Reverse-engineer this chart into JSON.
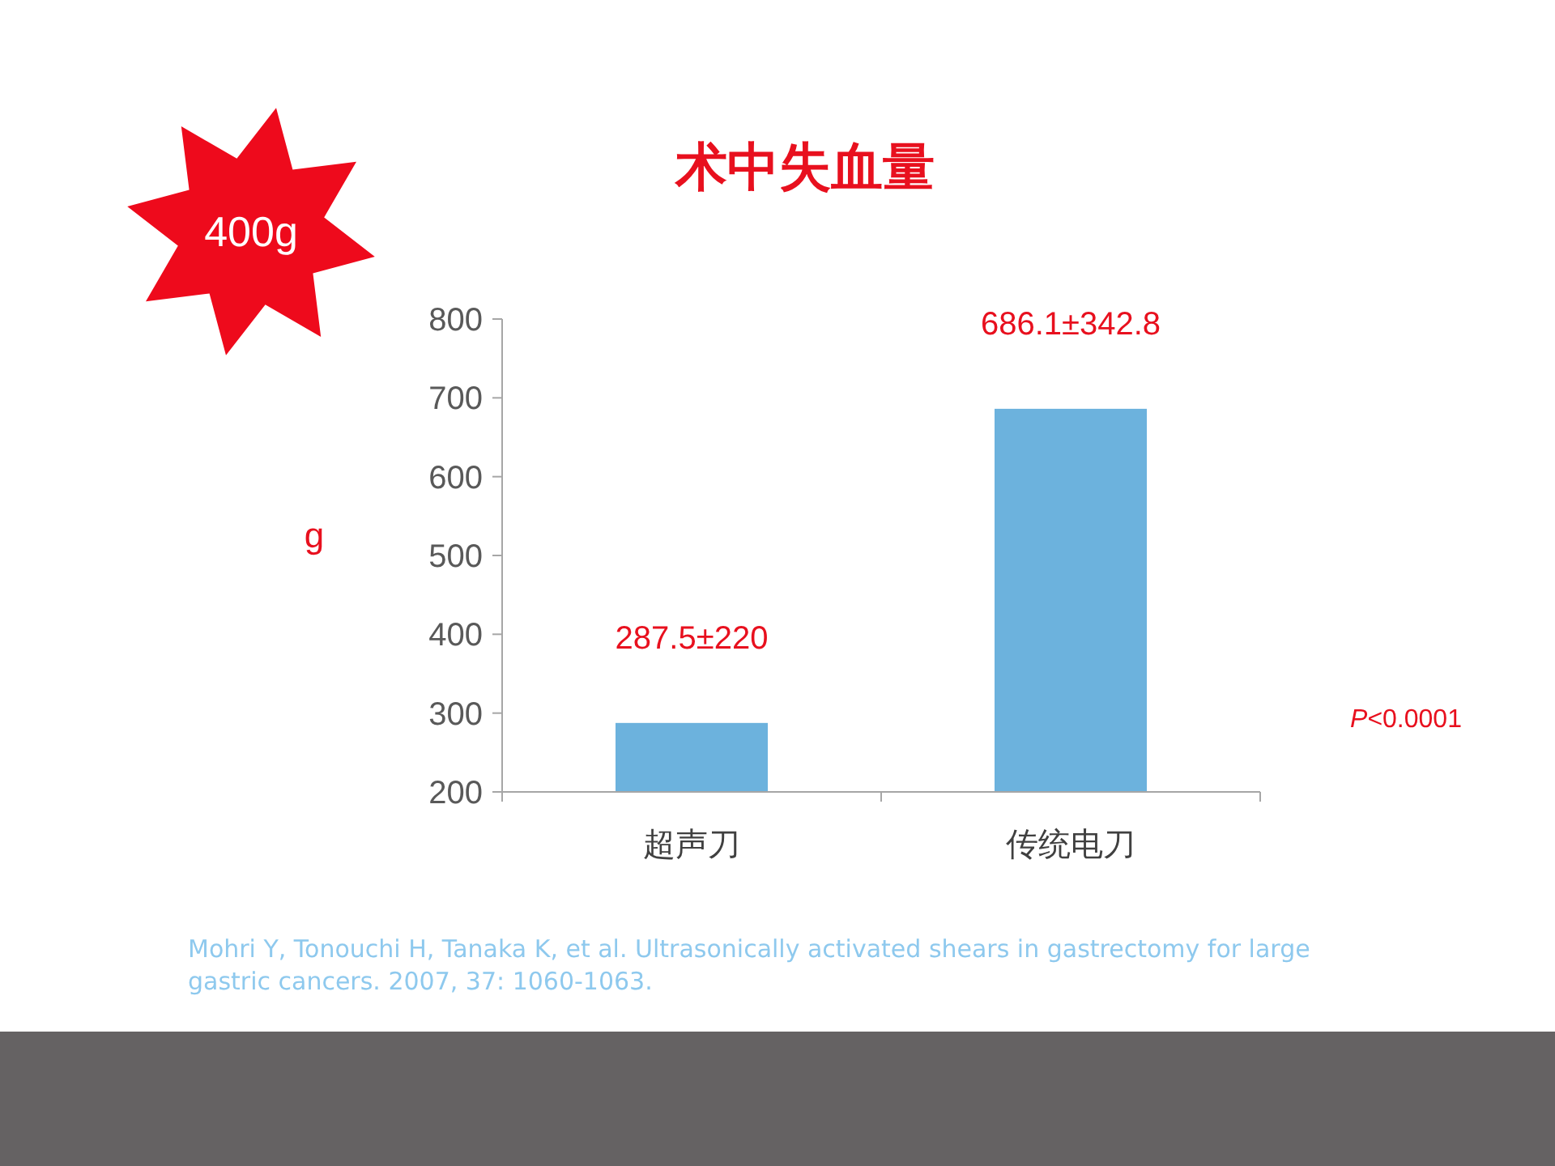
{
  "chart_data": {
    "type": "bar",
    "title": "术中失血量",
    "ylabel": "g",
    "categories": [
      "超声刀",
      "传统电刀"
    ],
    "values": [
      287.5,
      686.1
    ],
    "value_labels": [
      "287.5±220",
      "686.1±342.8"
    ],
    "color": "#6cb2dd",
    "ylim": [
      200,
      800
    ],
    "yticks": [
      200,
      300,
      400,
      500,
      600,
      700,
      800
    ],
    "grid": false,
    "annotations": [
      "400g",
      {
        "text": "*P*<0.0001"
      },
      "Mohri Y, Tonouchi H, Tanaka K, et al. Ultrasonically activated shears in gastrectomy for large gastric cancers. 2007, 37: 1060-1063."
    ]
  }
}
